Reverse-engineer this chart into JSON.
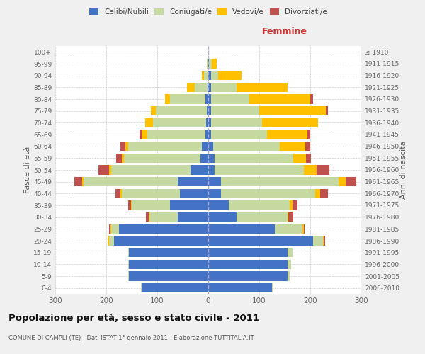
{
  "age_groups": [
    "0-4",
    "5-9",
    "10-14",
    "15-19",
    "20-24",
    "25-29",
    "30-34",
    "35-39",
    "40-44",
    "45-49",
    "50-54",
    "55-59",
    "60-64",
    "65-69",
    "70-74",
    "75-79",
    "80-84",
    "85-89",
    "90-94",
    "95-99",
    "100+"
  ],
  "birth_years": [
    "2006-2010",
    "2001-2005",
    "1996-2000",
    "1991-1995",
    "1986-1990",
    "1981-1985",
    "1976-1980",
    "1971-1975",
    "1966-1970",
    "1961-1965",
    "1956-1960",
    "1951-1955",
    "1946-1950",
    "1941-1945",
    "1936-1940",
    "1931-1935",
    "1926-1930",
    "1921-1925",
    "1916-1920",
    "1911-1915",
    "≤ 1910"
  ],
  "male": {
    "celibi": [
      130,
      155,
      155,
      155,
      185,
      175,
      60,
      75,
      55,
      60,
      35,
      15,
      12,
      5,
      4,
      3,
      5,
      2,
      0,
      0,
      0
    ],
    "coniugati": [
      2,
      2,
      2,
      2,
      10,
      15,
      55,
      75,
      115,
      185,
      155,
      150,
      145,
      115,
      105,
      100,
      70,
      25,
      8,
      3,
      0
    ],
    "vedovi": [
      0,
      0,
      0,
      0,
      2,
      2,
      2,
      2,
      2,
      2,
      5,
      5,
      5,
      10,
      15,
      10,
      10,
      15,
      5,
      0,
      0
    ],
    "divorziati": [
      0,
      0,
      0,
      0,
      0,
      2,
      5,
      5,
      10,
      15,
      20,
      10,
      10,
      5,
      0,
      0,
      0,
      0,
      0,
      0,
      0
    ]
  },
  "female": {
    "nubili": [
      125,
      155,
      155,
      155,
      205,
      130,
      55,
      40,
      25,
      25,
      12,
      12,
      10,
      5,
      5,
      5,
      5,
      5,
      5,
      2,
      0
    ],
    "coniugate": [
      2,
      5,
      8,
      10,
      20,
      55,
      100,
      120,
      185,
      230,
      175,
      155,
      130,
      110,
      100,
      95,
      75,
      50,
      15,
      5,
      0
    ],
    "vedove": [
      0,
      0,
      0,
      0,
      2,
      2,
      2,
      5,
      10,
      15,
      25,
      25,
      50,
      80,
      110,
      130,
      120,
      100,
      45,
      10,
      0
    ],
    "divorziate": [
      0,
      0,
      0,
      0,
      2,
      2,
      10,
      10,
      15,
      20,
      25,
      10,
      10,
      5,
      0,
      5,
      5,
      0,
      0,
      0,
      0
    ]
  },
  "colors": {
    "celibi": "#4472c4",
    "coniugati": "#c5d9a0",
    "vedovi": "#ffc000",
    "divorziati": "#c0504d"
  },
  "title": "Popolazione per età, sesso e stato civile - 2011",
  "subtitle": "COMUNE DI CAMPLI (TE) - Dati ISTAT 1° gennaio 2011 - Elaborazione TUTTITALIA.IT",
  "xlabel_right": "Femmine",
  "ylabel_left": "Fasce di età",
  "ylabel_right": "Anni di nascita",
  "xlim": 300,
  "bg_color": "#f0f0f0",
  "plot_bg": "#ffffff",
  "legend_labels": [
    "Celibi/Nubili",
    "Coniugati/e",
    "Vedovi/e",
    "Divorziati/e"
  ]
}
